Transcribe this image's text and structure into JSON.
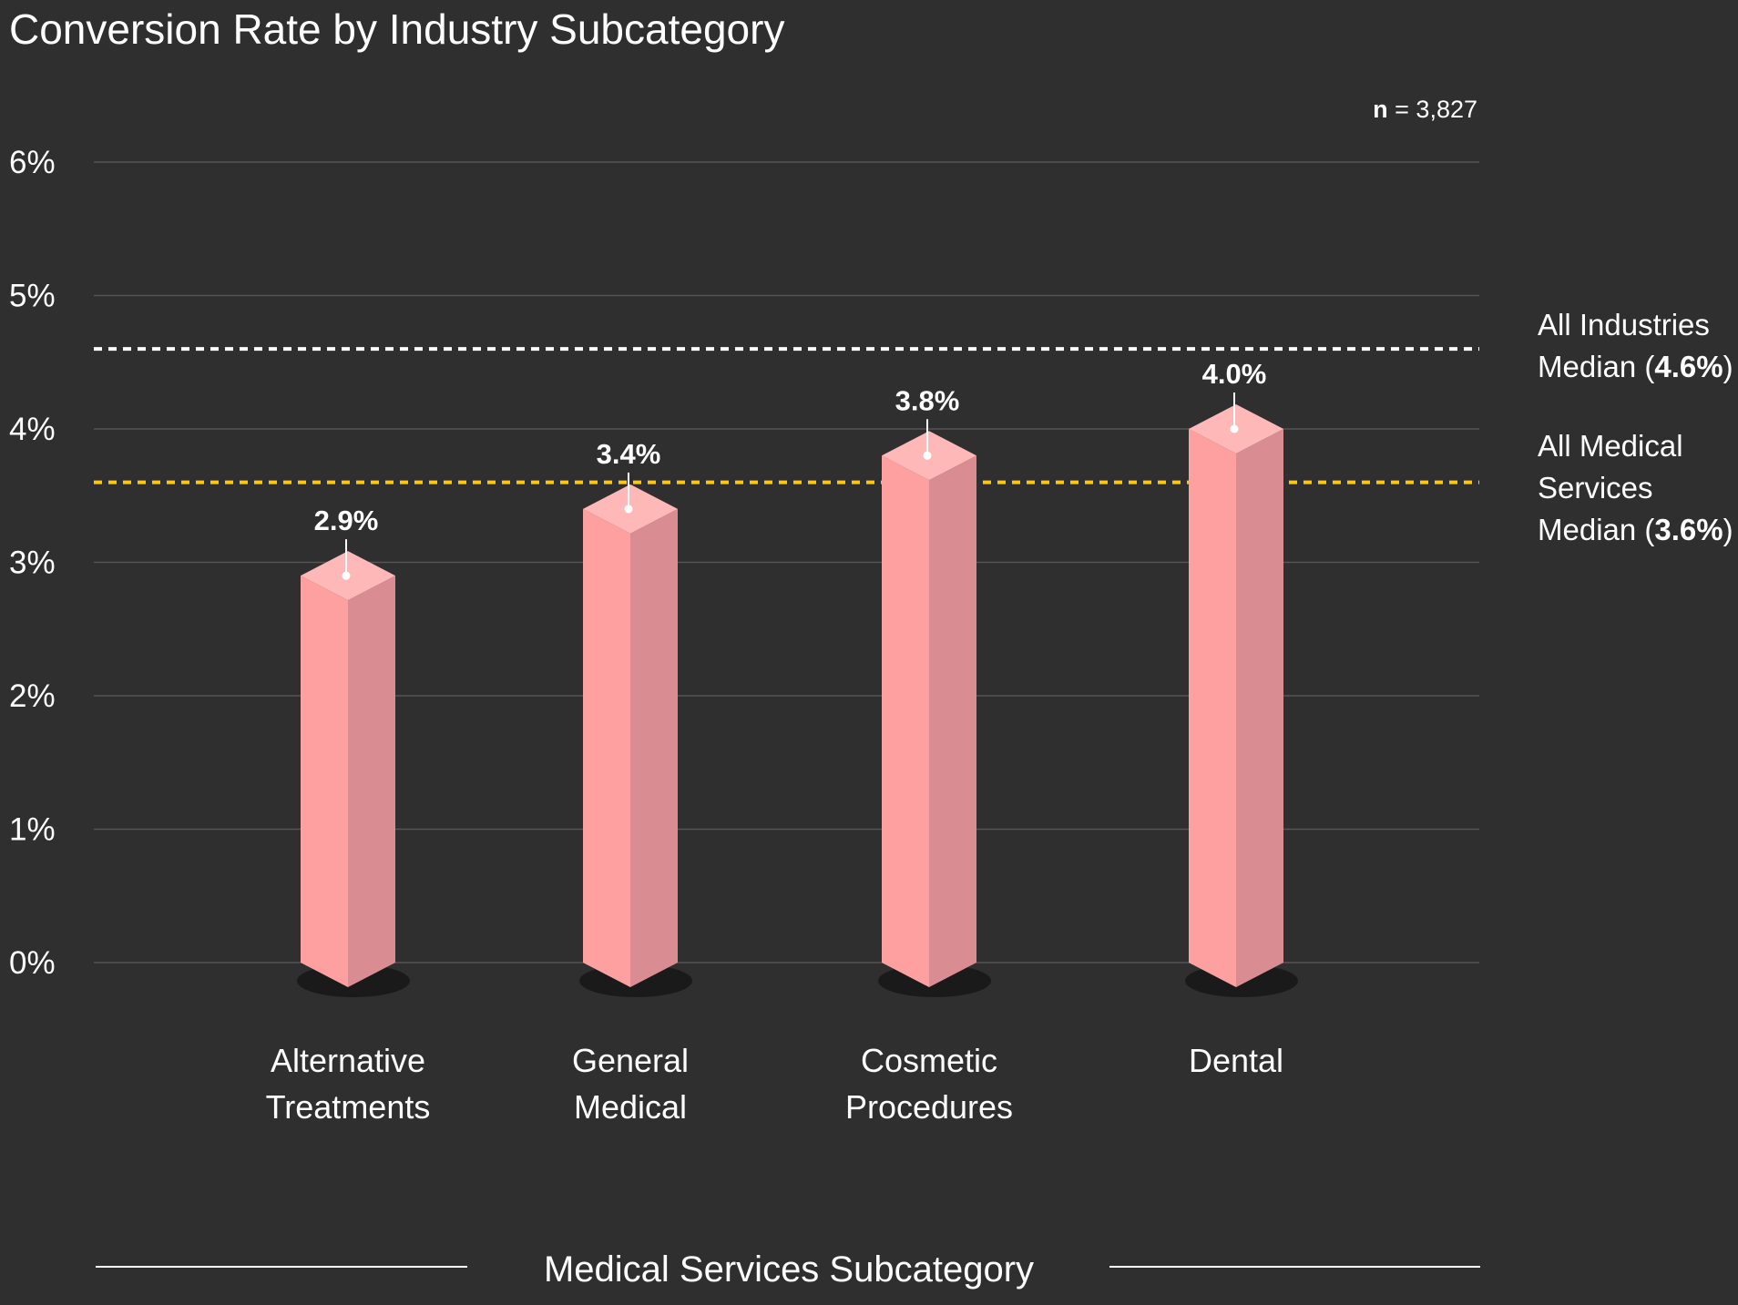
{
  "chart_data": {
    "type": "bar",
    "title": "Conversion Rate by Industry Subcategory",
    "xlabel": "Medical Services Subcategory",
    "ylabel": "",
    "categories": [
      "Alternative Treatments",
      "General Medical",
      "Cosmetic Procedures",
      "Dental"
    ],
    "values": [
      2.9,
      3.4,
      3.8,
      4.0
    ],
    "value_labels": [
      "2.9%",
      "3.4%",
      "3.8%",
      "4.0%"
    ],
    "ylim": [
      0,
      6
    ],
    "yticks": [
      0,
      1,
      2,
      3,
      4,
      5,
      6
    ],
    "ytick_labels": [
      "0%",
      "1%",
      "2%",
      "3%",
      "4%",
      "5%",
      "6%"
    ],
    "grid": true,
    "sample_size": {
      "label": "n",
      "value": "3,827"
    },
    "reference_lines": [
      {
        "name": "All Industries Median",
        "value": 4.6,
        "value_label": "4.6%",
        "style": "dotted",
        "color": "#ffffff",
        "label_lines": [
          "All Industries",
          "Median ("
        ],
        "label_suffix": ")"
      },
      {
        "name": "All Medical Services Median",
        "value": 3.6,
        "value_label": "3.6%",
        "style": "dotted",
        "color": "#ffc61a",
        "label_lines": [
          "All Medical",
          "Services",
          "Median ("
        ],
        "label_suffix": ")"
      }
    ],
    "colors": {
      "background": "#2f2f2f",
      "bar_front": "#ffa0a0",
      "bar_side": "#d98c91",
      "bar_top": "#ffb8b8",
      "gridline": "#555555",
      "text": "#ffffff"
    }
  }
}
